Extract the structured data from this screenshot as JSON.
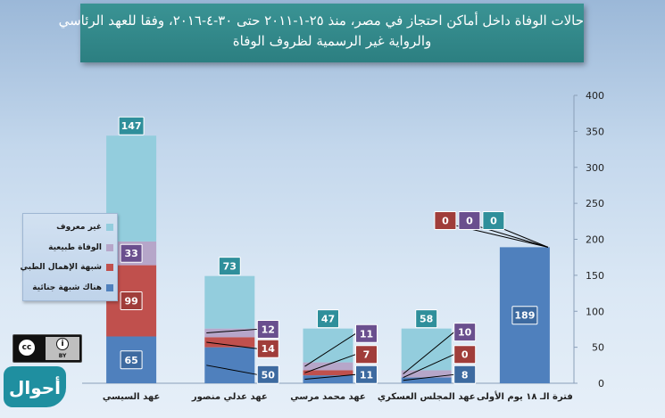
{
  "title": {
    "line1": "حالات الوفاة داخل أماكن احتجاز في مصر، منذ ٢٥-١-٢٠١١ حتى ٣٠-٤-٢٠١٦، وفقا للعهد الرئاسي",
    "line2": "والرواية غير الرسمية لظروف الوفاة"
  },
  "logo_text": "أحوال",
  "cc_badge": {
    "cc": "cc",
    "by": "BY"
  },
  "colors": {
    "criminal": "#4f80bd",
    "negligence": "#c0504d",
    "natural": "#b6a6c9",
    "unknown": "#93cddd",
    "label_criminal": "#3d6aa0",
    "label_negligence": "#a03d3a",
    "label_natural": "#6a4f8e",
    "label_unknown": "#2f8f9b",
    "axis_text": "#222222"
  },
  "chart_data": {
    "type": "bar",
    "stacked": true,
    "categories": [
      "عهد السيسي",
      "عهد عدلي منصور",
      "عهد محمد مرسي",
      "عهد المجلس العسكري",
      "فترة الـ ١٨ يوم الأولى"
    ],
    "series": [
      {
        "name": "هناك شبهة جنائية",
        "key": "criminal",
        "values": [
          65,
          50,
          11,
          8,
          189
        ]
      },
      {
        "name": "شبهة الإهمال الطبي",
        "key": "negligence",
        "values": [
          99,
          14,
          7,
          0,
          0
        ]
      },
      {
        "name": "الوفاة طبيعية",
        "key": "natural",
        "values": [
          33,
          12,
          11,
          10,
          0
        ]
      },
      {
        "name": "غير معروف",
        "key": "unknown",
        "values": [
          147,
          73,
          47,
          58,
          0
        ]
      }
    ],
    "ylim": [
      0,
      400
    ],
    "yticks": [
      "0",
      "50",
      "100",
      "150",
      "200",
      "250",
      "300",
      "350",
      "400"
    ],
    "y_axis_position": "right",
    "grid": false,
    "legend_position": "left"
  }
}
